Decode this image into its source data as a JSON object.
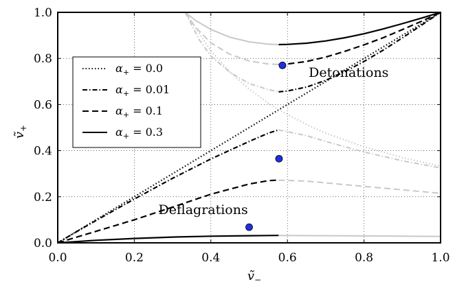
{
  "chart_data": {
    "type": "line",
    "xlabel_main": "ṽ",
    "xlabel_sub": "−",
    "ylabel_main": "ṽ",
    "ylabel_sub": "+",
    "xlim": [
      0.0,
      1.0
    ],
    "ylim": [
      0.0,
      1.0
    ],
    "xticks": [
      "0.0",
      "0.2",
      "0.4",
      "0.6",
      "0.8",
      "1.0"
    ],
    "yticks": [
      "0.0",
      "0.2",
      "0.4",
      "0.6",
      "0.8",
      "1.0"
    ],
    "grid": true,
    "legend_position": "center-left",
    "legend": [
      {
        "symbol": "α",
        "sub": "+",
        "rest": " = 0.0",
        "style": "dotted"
      },
      {
        "symbol": "α",
        "sub": "+",
        "rest": " = 0.01",
        "style": "dashdot"
      },
      {
        "symbol": "α",
        "sub": "+",
        "rest": " = 0.1",
        "style": "dashed"
      },
      {
        "symbol": "α",
        "sub": "+",
        "rest": " = 0.3",
        "style": "solid"
      }
    ],
    "annotations": [
      {
        "text": "Detonations",
        "x": 0.76,
        "y": 0.72
      },
      {
        "text": "Deflagrations",
        "x": 0.38,
        "y": 0.125
      }
    ],
    "points": [
      {
        "x": 0.587,
        "y": 0.77
      },
      {
        "x": 0.578,
        "y": 0.365
      },
      {
        "x": 0.5,
        "y": 0.068
      }
    ],
    "series": [
      {
        "style": "solid",
        "color": "#000000",
        "x": [
          0.577,
          0.6,
          0.65,
          0.7,
          0.75,
          0.8,
          0.85,
          0.9,
          0.95,
          1.0
        ],
        "y": [
          0.86,
          0.861,
          0.866,
          0.876,
          0.89,
          0.907,
          0.928,
          0.951,
          0.975,
          1.0
        ]
      },
      {
        "style": "solid",
        "color": "#c8c8c8",
        "x": [
          0.333,
          0.36,
          0.4,
          0.45,
          0.5,
          0.55,
          0.577
        ],
        "y": [
          1.0,
          0.965,
          0.926,
          0.892,
          0.872,
          0.862,
          0.86
        ]
      },
      {
        "style": "dashed",
        "color": "#000000",
        "x": [
          0.577,
          0.6,
          0.65,
          0.7,
          0.75,
          0.8,
          0.85,
          0.9,
          0.95,
          1.0
        ],
        "y": [
          0.774,
          0.776,
          0.787,
          0.806,
          0.831,
          0.859,
          0.89,
          0.925,
          0.961,
          1.0
        ]
      },
      {
        "style": "dashed",
        "color": "#c8c8c8",
        "x": [
          0.333,
          0.36,
          0.4,
          0.45,
          0.5,
          0.55,
          0.577
        ],
        "y": [
          1.0,
          0.935,
          0.868,
          0.818,
          0.789,
          0.776,
          0.774
        ]
      },
      {
        "style": "dashdot",
        "color": "#000000",
        "x": [
          0.577,
          0.6,
          0.65,
          0.7,
          0.75,
          0.8,
          0.85,
          0.9,
          0.95,
          1.0
        ],
        "y": [
          0.655,
          0.659,
          0.676,
          0.705,
          0.743,
          0.787,
          0.836,
          0.889,
          0.944,
          1.0
        ]
      },
      {
        "style": "dashdot",
        "color": "#c8c8c8",
        "x": [
          0.333,
          0.37,
          0.4,
          0.45,
          0.5,
          0.55,
          0.577
        ],
        "y": [
          1.0,
          0.88,
          0.81,
          0.74,
          0.691,
          0.665,
          0.655
        ]
      },
      {
        "style": "dotted",
        "color": "#000000",
        "x": [
          0.0,
          1.0
        ],
        "y": [
          0.0,
          1.0
        ]
      },
      {
        "style": "dotted",
        "color": "#c8c8c8",
        "x": [
          0.333,
          0.4,
          0.45,
          0.5,
          0.55,
          0.577,
          0.65,
          0.7,
          0.8,
          0.9,
          1.0
        ],
        "y": [
          1.0,
          0.833,
          0.741,
          0.667,
          0.606,
          0.577,
          0.513,
          0.476,
          0.417,
          0.37,
          0.333
        ]
      },
      {
        "style": "dashdot",
        "color": "#000000",
        "x": [
          0.0,
          0.05,
          0.1,
          0.2,
          0.3,
          0.4,
          0.5,
          0.55,
          0.577
        ],
        "y": [
          0.0,
          0.049,
          0.097,
          0.19,
          0.28,
          0.364,
          0.44,
          0.476,
          0.49
        ]
      },
      {
        "style": "dashdot",
        "color": "#c8c8c8",
        "x": [
          0.577,
          0.65,
          0.7,
          0.8,
          0.9,
          1.0
        ],
        "y": [
          0.49,
          0.465,
          0.44,
          0.394,
          0.356,
          0.325
        ]
      },
      {
        "style": "dashed",
        "color": "#000000",
        "x": [
          0.0,
          0.05,
          0.1,
          0.2,
          0.3,
          0.4,
          0.5,
          0.55,
          0.577
        ],
        "y": [
          0.0,
          0.025,
          0.05,
          0.1,
          0.155,
          0.211,
          0.255,
          0.27,
          0.272
        ]
      },
      {
        "style": "dashed",
        "color": "#c8c8c8",
        "x": [
          0.577,
          0.65,
          0.7,
          0.8,
          0.9,
          1.0
        ],
        "y": [
          0.272,
          0.268,
          0.26,
          0.245,
          0.23,
          0.215
        ]
      },
      {
        "style": "solid",
        "color": "#000000",
        "x": [
          0.0,
          0.1,
          0.2,
          0.3,
          0.4,
          0.5,
          0.577
        ],
        "y": [
          0.0,
          0.011,
          0.019,
          0.025,
          0.029,
          0.031,
          0.032
        ]
      },
      {
        "style": "solid",
        "color": "#c8c8c8",
        "x": [
          0.577,
          0.7,
          0.8,
          0.9,
          1.0
        ],
        "y": [
          0.032,
          0.031,
          0.03,
          0.029,
          0.028
        ]
      }
    ]
  }
}
